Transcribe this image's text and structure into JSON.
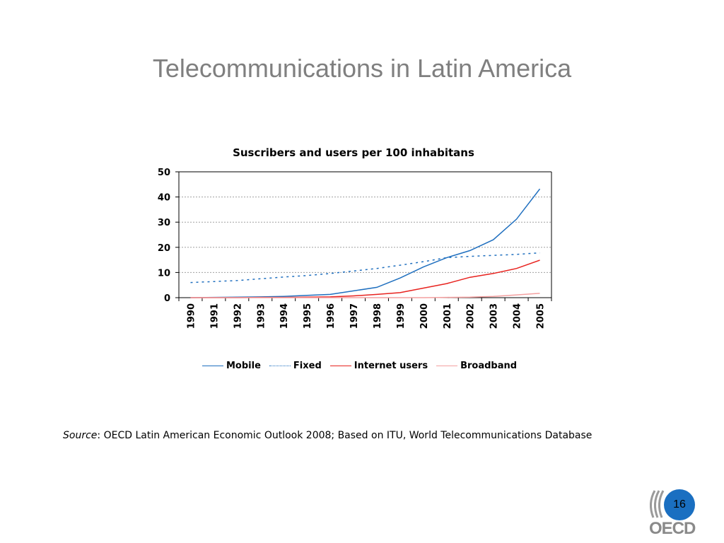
{
  "slide": {
    "title": "Telecommunications in Latin America",
    "source_label": "Source",
    "source_text": ":  OECD Latin American Economic Outlook 2008; Based on ITU, World Telecommunications Database",
    "page_number": "16",
    "logo_text": "OECD"
  },
  "chart_data": {
    "type": "line",
    "title": "Suscribers and users per 100 inhabitans",
    "xlabel": "",
    "ylabel": "",
    "x": [
      "1990",
      "1991",
      "1992",
      "1993",
      "1994",
      "1995",
      "1996",
      "1997",
      "1998",
      "1999",
      "2000",
      "2001",
      "2002",
      "2003",
      "2004",
      "2005"
    ],
    "ylim": [
      0,
      50
    ],
    "yticks": [
      0,
      10,
      20,
      30,
      40,
      50
    ],
    "grid": true,
    "legend_position": "bottom",
    "series": [
      {
        "name": "Mobile",
        "color": "#1f6fbf",
        "style": "solid",
        "values": [
          0.0,
          0.1,
          0.2,
          0.3,
          0.5,
          0.9,
          1.3,
          2.7,
          4.1,
          7.8,
          12.2,
          15.9,
          18.7,
          23.0,
          31.2,
          43.2
        ]
      },
      {
        "name": "Fixed",
        "color": "#1f6fbf",
        "style": "dotted",
        "values": [
          6.0,
          6.4,
          6.8,
          7.5,
          8.2,
          8.8,
          9.6,
          10.6,
          11.6,
          12.9,
          14.3,
          15.9,
          16.4,
          16.8,
          17.2,
          17.8
        ]
      },
      {
        "name": "Internet users",
        "color": "#e8231f",
        "style": "solid",
        "values": [
          0.0,
          0.0,
          0.0,
          0.1,
          0.1,
          0.2,
          0.3,
          0.7,
          1.3,
          2.0,
          3.8,
          5.6,
          8.1,
          9.6,
          11.6,
          14.9
        ]
      },
      {
        "name": "Broadband",
        "color": "#f4a0a0",
        "style": "solid",
        "values": [
          0.0,
          0.0,
          0.0,
          0.0,
          0.0,
          0.0,
          0.0,
          0.0,
          0.0,
          0.0,
          0.0,
          0.1,
          0.2,
          0.5,
          1.1,
          1.7
        ]
      }
    ]
  }
}
